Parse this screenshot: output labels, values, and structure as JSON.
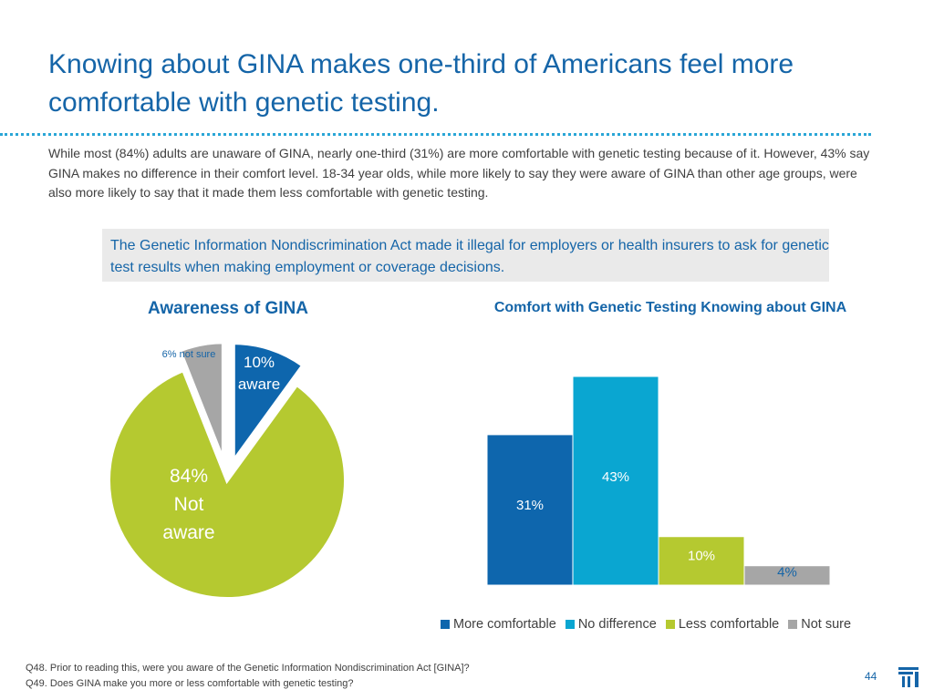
{
  "title": "Knowing about GINA makes one-third of Americans feel more comfortable with genetic testing.",
  "body": "While most (84%) adults are unaware of GINA, nearly one-third (31%) are more comfortable with genetic testing because of it. However, 43% say GINA makes no difference in their comfort level. 18-34 year olds, while more likely to say they were aware of GINA than other age groups, were also more likely to say that it made them less comfortable with genetic testing.",
  "callout": "The Genetic Information Nondiscrimination Act made it illegal for employers or health insurers to ask for genetic test results when making employment or coverage decisions.",
  "chart_data": [
    {
      "type": "pie",
      "title": "Awareness of GINA",
      "slices": [
        {
          "name": "aware",
          "value": 10,
          "label_top": "10%",
          "label_bottom": "aware",
          "color": "#0e66ad",
          "exploded": true
        },
        {
          "name": "not_aware",
          "value": 84,
          "label_top": "84%",
          "label_mid": "Not",
          "label_bottom": "aware",
          "color": "#b5c930",
          "exploded": false
        },
        {
          "name": "not_sure",
          "value": 6,
          "label": "6% not sure",
          "color": "#a6a6a6",
          "exploded": true
        }
      ]
    },
    {
      "type": "bar",
      "title": "Comfort with Genetic Testing Knowing about GINA",
      "categories": [
        "More comfortable",
        "No difference",
        "Less comfortable",
        "Not sure"
      ],
      "values": [
        31,
        43,
        10,
        4
      ],
      "labels": [
        "31%",
        "43%",
        "10%",
        "4%"
      ],
      "colors": [
        "#0e66ad",
        "#0aa6d1",
        "#b5c930",
        "#a6a6a6"
      ],
      "ylim": [
        0,
        43
      ]
    }
  ],
  "footnotes": {
    "q48": "Q48. Prior to reading this, were you aware of the Genetic Information Nondiscrimination Act [GINA]?",
    "q49": "Q49. Does GINA make you more or less comfortable with genetic testing?"
  },
  "page_number": "44"
}
